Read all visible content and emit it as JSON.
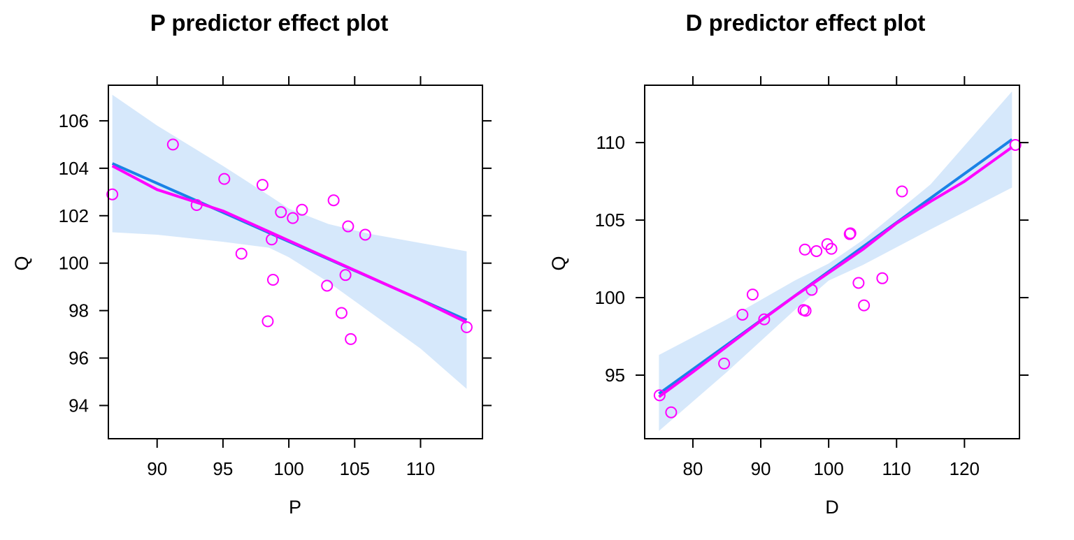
{
  "chart_data": [
    {
      "type": "scatter",
      "title": "P predictor effect plot",
      "xlabel": "P",
      "ylabel": "Q",
      "xlim": [
        86.3,
        114.7
      ],
      "ylim": [
        92.6,
        107.5
      ],
      "xticks": [
        90,
        95,
        100,
        105,
        110
      ],
      "yticks": [
        94,
        96,
        98,
        100,
        102,
        104,
        106
      ],
      "grid": false,
      "fit_line": {
        "x": [
          86.6,
          113.5
        ],
        "y": [
          104.2,
          97.6
        ]
      },
      "ci_band": {
        "x": [
          86.6,
          90,
          95,
          98.5,
          100,
          103,
          106,
          110,
          113.5
        ],
        "upper": [
          107.1,
          105.8,
          104.1,
          102.85,
          102.3,
          101.65,
          101.25,
          100.85,
          100.5
        ],
        "lower": [
          101.3,
          101.2,
          100.9,
          100.65,
          100.25,
          99.2,
          98.0,
          96.4,
          94.7
        ]
      },
      "smooth_line": {
        "x": [
          86.6,
          90,
          95,
          98,
          100,
          103,
          106,
          110,
          113.5
        ],
        "y": [
          104.1,
          103.1,
          102.2,
          101.45,
          100.95,
          100.2,
          99.45,
          98.45,
          97.5
        ]
      },
      "points": {
        "x": [
          86.6,
          91.2,
          93.0,
          95.1,
          96.4,
          98.0,
          98.4,
          98.7,
          98.8,
          99.4,
          100.3,
          101.0,
          102.9,
          103.4,
          104.0,
          104.3,
          104.5,
          104.7,
          105.8,
          113.5
        ],
        "y": [
          102.9,
          105.0,
          102.45,
          103.55,
          100.4,
          103.3,
          97.55,
          101.0,
          99.3,
          102.15,
          101.9,
          102.25,
          99.05,
          102.65,
          97.9,
          99.5,
          101.55,
          96.8,
          101.2,
          97.3
        ]
      }
    },
    {
      "type": "scatter",
      "title": "D predictor effect plot",
      "xlabel": "D",
      "ylabel": "Q",
      "xlim": [
        72.9,
        128.1
      ],
      "ylim": [
        90.9,
        113.7
      ],
      "xticks": [
        80,
        90,
        100,
        110,
        120
      ],
      "yticks": [
        95,
        100,
        105,
        110
      ],
      "grid": false,
      "fit_line": {
        "x": [
          75,
          127
        ],
        "y": [
          93.8,
          110.2
        ]
      },
      "ci_band": {
        "x": [
          75,
          85,
          95,
          100,
          105,
          115,
          127
        ],
        "upper": [
          96.3,
          98.6,
          101.1,
          102.2,
          103.7,
          107.3,
          113.3
        ],
        "lower": [
          91.4,
          95.2,
          99.2,
          101.1,
          102.1,
          104.4,
          107.1
        ]
      },
      "smooth_line": {
        "x": [
          75,
          80,
          85,
          90,
          95,
          100,
          105,
          110,
          115,
          120,
          127
        ],
        "y": [
          93.6,
          95.2,
          96.85,
          98.5,
          100.1,
          101.6,
          103.1,
          104.8,
          106.2,
          107.5,
          109.7
        ]
      },
      "points": {
        "x": [
          75.1,
          76.8,
          84.6,
          87.3,
          88.8,
          90.5,
          96.3,
          96.5,
          96.6,
          97.5,
          98.2,
          99.8,
          100.4,
          103.1,
          103.2,
          104.4,
          105.2,
          107.9,
          110.8,
          127.5
        ],
        "y": [
          93.7,
          92.6,
          95.75,
          98.9,
          100.2,
          98.6,
          99.2,
          103.1,
          99.15,
          100.5,
          103.0,
          103.45,
          103.15,
          104.1,
          104.15,
          100.95,
          99.5,
          101.25,
          106.85,
          109.85
        ]
      }
    }
  ]
}
